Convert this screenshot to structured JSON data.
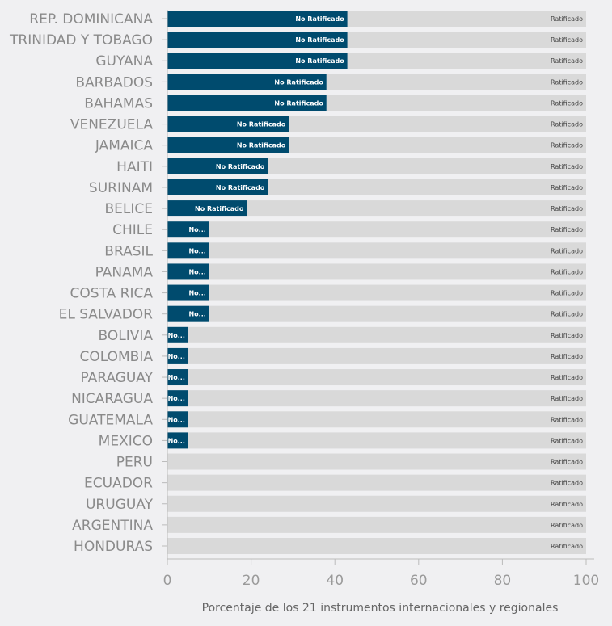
{
  "chart_data": {
    "type": "bar",
    "orientation": "horizontal",
    "stacked": true,
    "categories": [
      "REP. DOMINICANA",
      "TRINIDAD Y TOBAGO",
      "GUYANA",
      "BARBADOS",
      "BAHAMAS",
      "VENEZUELA",
      "JAMAICA",
      "HAITI",
      "SURINAM",
      "BELICE",
      "CHILE",
      "BRASIL",
      "PANAMA",
      "COSTA RICA",
      "EL SALVADOR",
      "BOLIVIA",
      "COLOMBIA",
      "PARAGUAY",
      "NICARAGUA",
      "GUATEMALA",
      "MEXICO",
      "PERU",
      "ECUADOR",
      "URUGUAY",
      "ARGENTINA",
      "HONDURAS"
    ],
    "series": [
      {
        "name": "No Ratificado",
        "short_label": "No...",
        "color": "#004b6e",
        "values": [
          43,
          43,
          43,
          38,
          38,
          29,
          29,
          24,
          24,
          19,
          10,
          10,
          10,
          10,
          10,
          5,
          5,
          5,
          5,
          5,
          5,
          0,
          0,
          0,
          0,
          0
        ]
      },
      {
        "name": "Ratificado",
        "color": "#d9d9d9",
        "values": [
          57,
          57,
          57,
          62,
          62,
          71,
          71,
          76,
          76,
          81,
          90,
          90,
          90,
          90,
          90,
          95,
          95,
          95,
          95,
          95,
          95,
          100,
          100,
          100,
          100,
          100
        ]
      }
    ],
    "xlabel": "Porcentaje de los 21 instrumentos internacionales y regionales",
    "xlim": [
      0,
      100
    ],
    "xticks": [
      "0",
      "20",
      "40",
      "60",
      "80",
      "100"
    ],
    "grid": false,
    "legend": "none"
  }
}
